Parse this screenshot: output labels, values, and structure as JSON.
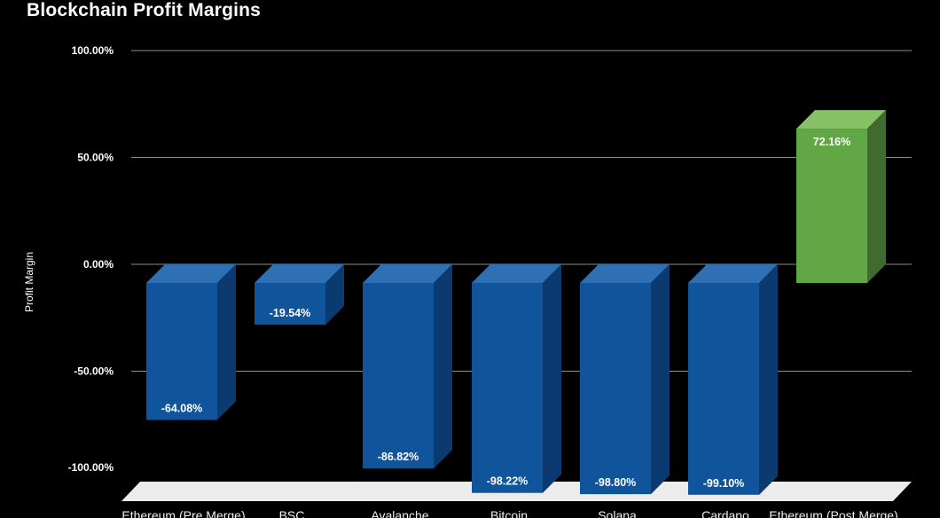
{
  "title": "Blockchain Profit Margins",
  "background_color": "#000000",
  "chart_data": {
    "type": "bar",
    "style": "3d",
    "title": "Blockchain Profit Margins",
    "xlabel": "",
    "ylabel": "Profit Margin",
    "ylim": [
      -100,
      100
    ],
    "grid": true,
    "legend": "none",
    "background": "#000000",
    "floor_color": "#ececec",
    "gridline_color": "#8c8c8c",
    "categories": [
      "Ethereum (Pre Merge)",
      "BSC",
      "Avalanche",
      "Bitcoin",
      "Solana",
      "Cardano",
      "Ethereum (Post Merge)"
    ],
    "values": [
      -64.08,
      -19.54,
      -86.82,
      -98.22,
      -98.8,
      -99.1,
      72.16
    ],
    "bars": [
      {
        "category": "Ethereum (Pre Merge)",
        "value": -64.08,
        "label": "-64.08%",
        "color_key": "blue"
      },
      {
        "category": "BSC",
        "value": -19.54,
        "label": "-19.54%",
        "color_key": "blue"
      },
      {
        "category": "Avalanche",
        "value": -86.82,
        "label": "-86.82%",
        "color_key": "blue"
      },
      {
        "category": "Bitcoin",
        "value": -98.22,
        "label": "-98.22%",
        "color_key": "blue"
      },
      {
        "category": "Solana",
        "value": -98.8,
        "label": "-98.80%",
        "color_key": "blue"
      },
      {
        "category": "Cardano",
        "value": -99.1,
        "label": "-99.10%",
        "color_key": "blue"
      },
      {
        "category": "Ethereum (Post Merge)",
        "value": 72.16,
        "label": "72.16%",
        "color_key": "green"
      }
    ],
    "palette": {
      "blue": {
        "front": "#10549b",
        "top": "#2e70b3",
        "side": "#0a3a70"
      },
      "green": {
        "front": "#61a746",
        "top": "#86c166",
        "side": "#3f6b2e"
      }
    },
    "yticks": [
      {
        "value": 100,
        "label": "100.00%"
      },
      {
        "value": 50,
        "label": "50.00%"
      },
      {
        "value": 0,
        "label": "0.00%"
      },
      {
        "value": -50,
        "label": "-50.00%"
      },
      {
        "value": -100,
        "label": "-100.00%"
      }
    ]
  }
}
